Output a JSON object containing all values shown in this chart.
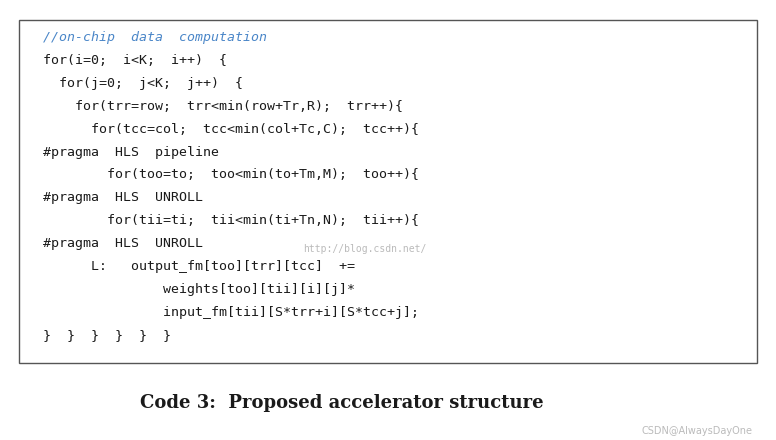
{
  "title": "Code 3:  Proposed accelerator structure",
  "title_fontsize": 13,
  "title_color": "#1a1a1a",
  "background_color": "#ffffff",
  "box_edge_color": "#555555",
  "code_lines": [
    {
      "text": "//on-chip  data  computation",
      "indent": 0,
      "italic": true,
      "color": "#4a86c8"
    },
    {
      "text": "for(i=0;  i<K;  i++)  {",
      "indent": 0,
      "italic": false,
      "color": "#1a1a1a"
    },
    {
      "text": "  for(j=0;  j<K;  j++)  {",
      "indent": 0,
      "italic": false,
      "color": "#1a1a1a"
    },
    {
      "text": "    for(trr=row;  trr<min(row+Tr,R);  trr++){",
      "indent": 0,
      "italic": false,
      "color": "#1a1a1a"
    },
    {
      "text": "      for(tcc=col;  tcc<min(col+Tc,C);  tcc++){",
      "indent": 0,
      "italic": false,
      "color": "#1a1a1a"
    },
    {
      "text": "#pragma  HLS  pipeline",
      "indent": 0,
      "italic": false,
      "color": "#1a1a1a"
    },
    {
      "text": "        for(too=to;  too<min(to+Tm,M);  too++){",
      "indent": 0,
      "italic": false,
      "color": "#1a1a1a"
    },
    {
      "text": "#pragma  HLS  UNROLL",
      "indent": 0,
      "italic": false,
      "color": "#1a1a1a"
    },
    {
      "text": "        for(tii=ti;  tii<min(ti+Tn,N);  tii++){",
      "indent": 0,
      "italic": false,
      "color": "#1a1a1a"
    },
    {
      "text": "#pragma  HLS  UNROLL",
      "indent": 0,
      "italic": false,
      "color": "#1a1a1a"
    },
    {
      "text": "      L:   output_fm[too][trr][tcc]  +=",
      "indent": 0,
      "italic": false,
      "color": "#1a1a1a"
    },
    {
      "text": "               weights[too][tii][i][j]*",
      "indent": 0,
      "italic": false,
      "color": "#1a1a1a"
    },
    {
      "text": "               input_fm[tii][S*trr+i][S*tcc+j];",
      "indent": 0,
      "italic": false,
      "color": "#1a1a1a"
    },
    {
      "text": "}  }  }  }  }  }",
      "indent": 0,
      "italic": false,
      "color": "#1a1a1a"
    }
  ],
  "watermark_text": "http://blog.csdn.net/",
  "watermark_color": "#bbbbbb",
  "watermark_fontsize": 7,
  "csdn_text": "CSDN@AlwaysDayOne",
  "csdn_color": "#bbbbbb",
  "csdn_fontsize": 7,
  "code_fontsize": 9.5,
  "figsize": [
    7.76,
    4.4
  ],
  "dpi": 100
}
